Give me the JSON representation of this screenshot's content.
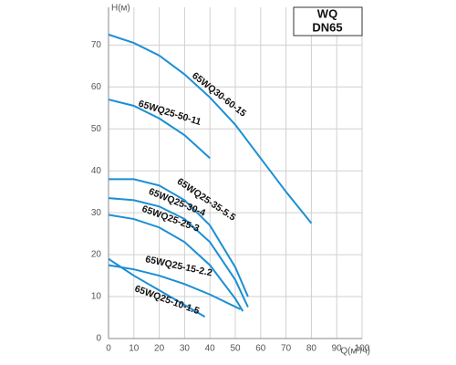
{
  "chart_data": {
    "type": "line",
    "title": "WQ",
    "subtitle": "DN65",
    "x_label": "Q(м³/ч)",
    "y_label": "H(м)",
    "xlim": [
      0,
      100
    ],
    "ylim": [
      0,
      79
    ],
    "xticks": [
      0,
      10,
      20,
      30,
      40,
      50,
      60,
      70,
      80,
      90,
      100
    ],
    "yticks": [
      0,
      10,
      20,
      30,
      40,
      50,
      60,
      70
    ],
    "grid": true,
    "color": "#1b8fd4",
    "series": [
      {
        "name": "65WQ30-60-15",
        "x": [
          0,
          10,
          20,
          30,
          40,
          50,
          60,
          70,
          80
        ],
        "values": [
          72.5,
          70.5,
          67.5,
          63,
          57.5,
          51,
          43,
          35,
          27.5
        ]
      },
      {
        "name": "65WQ25-50-11",
        "x": [
          0,
          10,
          20,
          30,
          40
        ],
        "values": [
          57,
          55.5,
          52.5,
          48.5,
          43
        ]
      },
      {
        "name": "65WQ25-35-5.5",
        "x": [
          0,
          10,
          20,
          30,
          40,
          50,
          55
        ],
        "values": [
          38,
          38,
          36.5,
          33,
          27,
          17,
          10
        ]
      },
      {
        "name": "65WQ25-30-4",
        "x": [
          0,
          10,
          20,
          30,
          40,
          50,
          55
        ],
        "values": [
          33.5,
          33,
          31.5,
          28.5,
          23,
          14,
          7.5
        ]
      },
      {
        "name": "65WQ25-25-3",
        "x": [
          0,
          10,
          20,
          30,
          40,
          50,
          53
        ],
        "values": [
          29.5,
          28.5,
          26.5,
          23,
          17.5,
          9.5,
          6.5
        ]
      },
      {
        "name": "65WQ25-15-2.2",
        "x": [
          0,
          10,
          20,
          30,
          40,
          52
        ],
        "values": [
          17.5,
          16.5,
          15,
          13,
          10.5,
          7
        ]
      },
      {
        "name": "65WQ25-10-1.5",
        "x": [
          0,
          10,
          20,
          30,
          38
        ],
        "values": [
          19,
          15,
          11.5,
          8,
          5.2
        ]
      }
    ]
  }
}
